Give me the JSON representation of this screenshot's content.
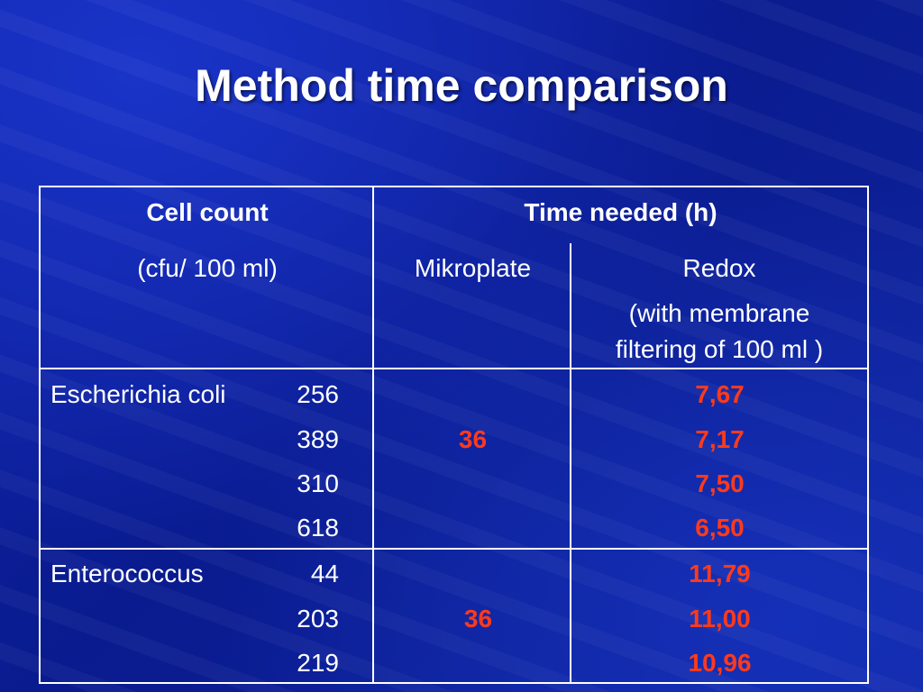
{
  "title": "Method time comparison",
  "header": {
    "col1_title": "Cell count",
    "col1_unit": "(cfu/ 100 ml)",
    "time_title": "Time needed (h)",
    "mikroplate": "Mikroplate",
    "redox": "Redox",
    "redox_note_line1": "(with membrane",
    "redox_note_line2": "filtering of 100 ml )"
  },
  "groups": [
    {
      "organism": "Escherichia coli",
      "counts": [
        "256",
        "389",
        "310",
        "618"
      ],
      "mikroplate": "36",
      "redox": [
        "7,67",
        "7,17",
        "7,50",
        "6,50"
      ]
    },
    {
      "organism": "Enterococcus",
      "counts": [
        "44",
        "203",
        "219"
      ],
      "mikroplate": "36",
      "redox": [
        "11,79",
        "11,00",
        "10,96"
      ]
    }
  ],
  "colors": {
    "background": "#0e22a6",
    "text": "#ffffff",
    "highlight": "#ff3a1a"
  }
}
